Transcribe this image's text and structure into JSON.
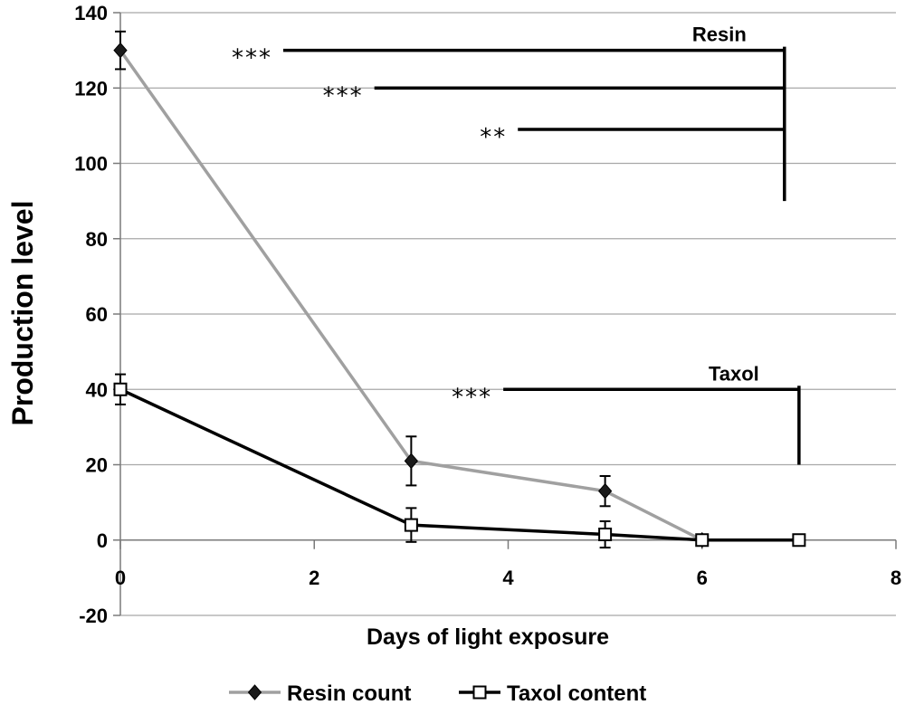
{
  "chart_data": {
    "type": "line",
    "title": "",
    "xlabel": "Days of light exposure",
    "ylabel": "Production level",
    "xlim": [
      0,
      8
    ],
    "ylim": [
      -20,
      140
    ],
    "x_ticks": [
      0,
      2,
      4,
      6,
      8
    ],
    "y_ticks": [
      -20,
      0,
      20,
      40,
      60,
      80,
      100,
      120,
      140
    ],
    "grid": "horizontal",
    "legend": "bottom",
    "series": [
      {
        "name": "Resin count",
        "color": "#a0a0a0",
        "marker": "filled-diamond",
        "marker_color": "#1a1a1a",
        "points": [
          {
            "x": 0,
            "y": 130,
            "err": 5
          },
          {
            "x": 3,
            "y": 21,
            "err": 6.5
          },
          {
            "x": 5,
            "y": 13,
            "err": 4
          },
          {
            "x": 6,
            "y": 0,
            "err": 0.8
          }
        ]
      },
      {
        "name": "Taxol content",
        "color": "#000000",
        "marker": "open-square",
        "marker_color": "#ffffff",
        "points": [
          {
            "x": 0,
            "y": 40,
            "err": 4
          },
          {
            "x": 3,
            "y": 4,
            "err": 4.5
          },
          {
            "x": 5,
            "y": 1.5,
            "err": 3.5
          },
          {
            "x": 6,
            "y": 0,
            "err": 0.8
          },
          {
            "x": 7,
            "y": 0,
            "err": 1.5
          }
        ]
      }
    ],
    "annotations": [
      {
        "label": "Resin",
        "bar_x": 6.85,
        "bar_y_min": 90,
        "bar_y_max": 130,
        "comparisons": [
          {
            "stars": "***",
            "x_start": 1.68,
            "y": 130
          },
          {
            "stars": "***",
            "x_start": 2.62,
            "y": 120
          },
          {
            "stars": "**",
            "x_start": 4.1,
            "y": 109
          }
        ]
      },
      {
        "label": "Taxol",
        "bar_x": 7.0,
        "bar_y_min": 20,
        "bar_y_max": 40,
        "comparisons": [
          {
            "stars": "***",
            "x_start": 3.95,
            "y": 40
          }
        ]
      }
    ]
  }
}
